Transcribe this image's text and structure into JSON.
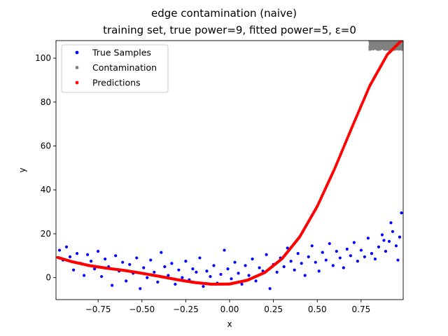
{
  "chart_data": {
    "type": "scatter",
    "title": "edge contamination (naive)",
    "subtitle": "training set, true power=9, fitted power=5, ε=0",
    "xlabel": "x",
    "ylabel": "y",
    "xlim": [
      -0.99,
      0.99
    ],
    "ylim": [
      -10,
      108
    ],
    "xticks": [
      -0.75,
      -0.5,
      -0.25,
      0.0,
      0.25,
      0.5,
      0.75
    ],
    "xtick_labels": [
      "−0.75",
      "−0.50",
      "−0.25",
      "0.00",
      "0.25",
      "0.50",
      "0.75"
    ],
    "yticks": [
      0,
      20,
      40,
      60,
      80,
      100
    ],
    "ytick_labels": [
      "0",
      "20",
      "40",
      "60",
      "80",
      "100"
    ],
    "grid": false,
    "legend_position": "top-left",
    "series": [
      {
        "name": "True Samples",
        "color": "#0000ff",
        "marker": "circle",
        "points": [
          [
            -0.97,
            12.5
          ],
          [
            -0.95,
            8.0
          ],
          [
            -0.93,
            14.0
          ],
          [
            -0.91,
            9.5
          ],
          [
            -0.89,
            3.5
          ],
          [
            -0.87,
            11.0
          ],
          [
            -0.85,
            6.5
          ],
          [
            -0.83,
            1.0
          ],
          [
            -0.81,
            10.5
          ],
          [
            -0.79,
            7.5
          ],
          [
            -0.77,
            4.0
          ],
          [
            -0.75,
            12.0
          ],
          [
            -0.73,
            0.5
          ],
          [
            -0.71,
            8.5
          ],
          [
            -0.69,
            5.0
          ],
          [
            -0.67,
            -3.5
          ],
          [
            -0.65,
            10.0
          ],
          [
            -0.63,
            3.0
          ],
          [
            -0.61,
            7.0
          ],
          [
            -0.59,
            -1.5
          ],
          [
            -0.57,
            6.0
          ],
          [
            -0.55,
            2.0
          ],
          [
            -0.53,
            9.0
          ],
          [
            -0.51,
            -5.0
          ],
          [
            -0.49,
            4.5
          ],
          [
            -0.47,
            0.0
          ],
          [
            -0.45,
            8.0
          ],
          [
            -0.43,
            2.5
          ],
          [
            -0.41,
            -2.0
          ],
          [
            -0.39,
            11.5
          ],
          [
            -0.37,
            5.0
          ],
          [
            -0.35,
            1.0
          ],
          [
            -0.33,
            6.5
          ],
          [
            -0.31,
            -3.0
          ],
          [
            -0.29,
            3.5
          ],
          [
            -0.27,
            0.0
          ],
          [
            -0.25,
            7.5
          ],
          [
            -0.23,
            -1.0
          ],
          [
            -0.21,
            4.0
          ],
          [
            -0.19,
            2.5
          ],
          [
            -0.17,
            9.0
          ],
          [
            -0.15,
            -4.0
          ],
          [
            -0.13,
            3.0
          ],
          [
            -0.11,
            0.5
          ],
          [
            -0.09,
            5.5
          ],
          [
            -0.07,
            -2.5
          ],
          [
            -0.05,
            1.5
          ],
          [
            -0.03,
            12.5
          ],
          [
            -0.01,
            4.0
          ],
          [
            0.01,
            -0.5
          ],
          [
            0.03,
            7.0
          ],
          [
            0.05,
            2.0
          ],
          [
            0.07,
            -3.0
          ],
          [
            0.09,
            5.5
          ],
          [
            0.11,
            1.0
          ],
          [
            0.13,
            8.5
          ],
          [
            0.15,
            -1.5
          ],
          [
            0.17,
            4.5
          ],
          [
            0.19,
            3.0
          ],
          [
            0.21,
            10.5
          ],
          [
            0.23,
            -5.0
          ],
          [
            0.25,
            6.0
          ],
          [
            0.27,
            2.5
          ],
          [
            0.29,
            9.0
          ],
          [
            0.31,
            5.0
          ],
          [
            0.33,
            13.5
          ],
          [
            0.35,
            7.5
          ],
          [
            0.37,
            3.5
          ],
          [
            0.39,
            11.0
          ],
          [
            0.41,
            6.5
          ],
          [
            0.43,
            1.0
          ],
          [
            0.45,
            9.5
          ],
          [
            0.47,
            14.5
          ],
          [
            0.49,
            7.0
          ],
          [
            0.51,
            3.0
          ],
          [
            0.53,
            11.5
          ],
          [
            0.55,
            8.0
          ],
          [
            0.57,
            15.5
          ],
          [
            0.59,
            5.5
          ],
          [
            0.61,
            12.0
          ],
          [
            0.63,
            9.0
          ],
          [
            0.65,
            4.5
          ],
          [
            0.67,
            13.0
          ],
          [
            0.69,
            10.0
          ],
          [
            0.71,
            16.0
          ],
          [
            0.73,
            7.5
          ],
          [
            0.75,
            12.5
          ],
          [
            0.77,
            9.5
          ],
          [
            0.79,
            18.0
          ],
          [
            0.81,
            11.0
          ],
          [
            0.83,
            8.5
          ],
          [
            0.85,
            14.0
          ],
          [
            0.87,
            19.5
          ],
          [
            0.89,
            12.0
          ],
          [
            0.91,
            16.5
          ],
          [
            0.93,
            21.0
          ],
          [
            0.95,
            14.5
          ],
          [
            0.97,
            18.5
          ],
          [
            0.98,
            29.5
          ],
          [
            0.96,
            8.0
          ],
          [
            0.92,
            25.0
          ],
          [
            0.88,
            17.0
          ]
        ]
      },
      {
        "name": "Contamination",
        "color": "#808080",
        "marker": "circle",
        "x_range": [
          0.8,
          0.99
        ],
        "y_range": [
          104,
          108
        ]
      },
      {
        "name": "Predictions",
        "color": "#ff0000",
        "marker": "circle",
        "curve_samples": [
          [
            -0.98,
            9.2
          ],
          [
            -0.9,
            7.3
          ],
          [
            -0.8,
            5.5
          ],
          [
            -0.7,
            4.3
          ],
          [
            -0.6,
            3.3
          ],
          [
            -0.5,
            2.0
          ],
          [
            -0.4,
            0.6
          ],
          [
            -0.3,
            -0.9
          ],
          [
            -0.2,
            -2.2
          ],
          [
            -0.1,
            -3.0
          ],
          [
            0.0,
            -2.9
          ],
          [
            0.1,
            -1.2
          ],
          [
            0.2,
            2.3
          ],
          [
            0.3,
            8.7
          ],
          [
            0.4,
            18.6
          ],
          [
            0.5,
            32.5
          ],
          [
            0.6,
            49.8
          ],
          [
            0.7,
            68.9
          ],
          [
            0.8,
            87.5
          ],
          [
            0.9,
            101.7
          ],
          [
            0.98,
            108.0
          ]
        ]
      }
    ]
  }
}
